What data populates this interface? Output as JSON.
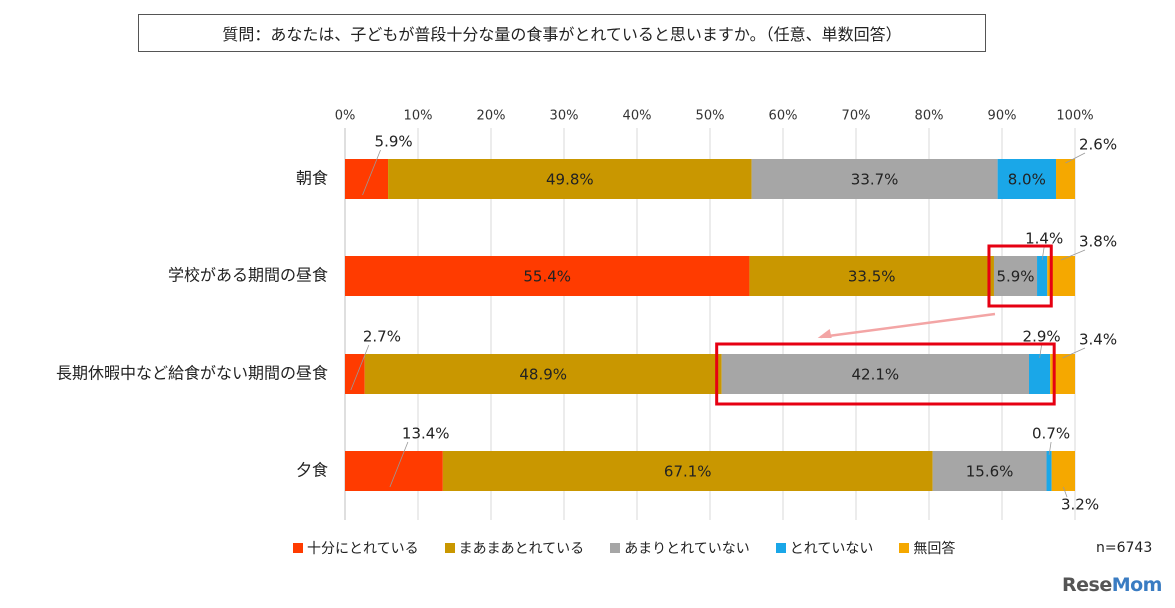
{
  "title": "質問：あなたは、子どもが普段十分な量の食事がとれていると思いますか。（任意、単数回答）",
  "n_note": "n=6743",
  "logo": {
    "part1": "Rese",
    "part2": "Mom"
  },
  "colors": {
    "十分にとれている": "#ff3b00",
    "まあまあとれている": "#c99700",
    "あまりとれていない": "#a6a6a6",
    "とれていない": "#1aa7e8",
    "無回答": "#f5a800"
  },
  "chart_data": {
    "type": "bar",
    "orientation": "horizontal",
    "stacked": true,
    "xlim": [
      0,
      100
    ],
    "x_ticks": [
      "0%",
      "10%",
      "20%",
      "30%",
      "40%",
      "50%",
      "60%",
      "70%",
      "80%",
      "90%",
      "100%"
    ],
    "grid": true,
    "legend_position": "bottom",
    "categories": [
      "朝食",
      "学校がある期間の昼食",
      "長期休暇中など給食がない期間の昼食",
      "夕食"
    ],
    "series": [
      {
        "name": "十分にとれている",
        "values": [
          5.9,
          55.4,
          2.7,
          13.4
        ],
        "labels": [
          "5.9%",
          "55.4%",
          "2.7%",
          "13.4%"
        ]
      },
      {
        "name": "まあまあとれている",
        "values": [
          49.8,
          33.5,
          48.9,
          67.1
        ],
        "labels": [
          "49.8%",
          "33.5%",
          "48.9%",
          "67.1%"
        ]
      },
      {
        "name": "あまりとれていない",
        "values": [
          33.7,
          5.9,
          42.1,
          15.6
        ],
        "labels": [
          "33.7%",
          "5.9%",
          "42.1%",
          "15.6%"
        ]
      },
      {
        "name": "とれていない",
        "values": [
          8.0,
          1.4,
          2.9,
          0.7
        ],
        "labels": [
          "8.0%",
          "1.4%",
          "2.9%",
          "0.7%"
        ]
      },
      {
        "name": "無回答",
        "values": [
          2.6,
          3.8,
          3.4,
          3.2
        ],
        "labels": [
          "2.6%",
          "3.8%",
          "3.4%",
          "3.2%"
        ]
      }
    ],
    "highlights": [
      {
        "category": "学校がある期間の昼食",
        "series": [
          "あまりとれていない",
          "とれていない"
        ]
      },
      {
        "category": "長期休暇中など給食がない期間の昼食",
        "series": [
          "あまりとれていない",
          "とれていない"
        ]
      }
    ]
  }
}
